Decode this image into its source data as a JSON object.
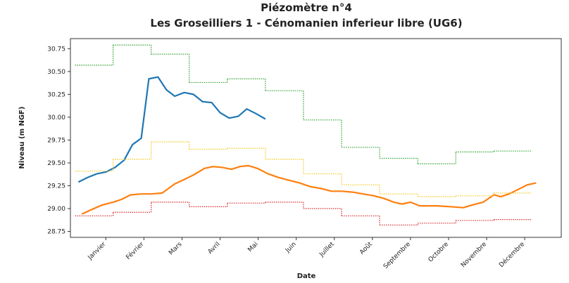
{
  "chart_data": {
    "type": "line",
    "title": "Piézomètre n°4",
    "subtitle": "Les Groseilliers 1 - Cénomanien inferieur libre (UG6)",
    "x_label": "Date",
    "y_label": "Niveau (m NGF)",
    "xlim": [
      0.07,
      12.96
    ],
    "xticks": [
      {
        "value": 1,
        "label": "Janvier"
      },
      {
        "value": 2,
        "label": "Février"
      },
      {
        "value": 3,
        "label": "Mars"
      },
      {
        "value": 4,
        "label": "Avril"
      },
      {
        "value": 5,
        "label": "Mai"
      },
      {
        "value": 6,
        "label": "Juin"
      },
      {
        "value": 7,
        "label": "Juillet"
      },
      {
        "value": 8,
        "label": "Août"
      },
      {
        "value": 9,
        "label": "Septembre"
      },
      {
        "value": 10,
        "label": "Octobre"
      },
      {
        "value": 11,
        "label": "Novembre"
      },
      {
        "value": 12,
        "label": "Décembre"
      }
    ],
    "ylim": [
      28.685,
      30.86
    ],
    "yticks": [
      28.75,
      {
        "value": 29,
        "label": "29.00"
      },
      29.25,
      {
        "value": 29.5,
        "label": "29.50"
      },
      29.75,
      {
        "value": 30,
        "label": "30.00"
      },
      30.25,
      {
        "value": 30.5,
        "label": "30.50"
      },
      30.75
    ],
    "series": [
      {
        "color": "#1f77b4",
        "style": "solid",
        "x": [
          0.28,
          0.52,
          0.76,
          1.0,
          1.24,
          1.48,
          1.7,
          1.93,
          2.13,
          2.37,
          2.59,
          2.81,
          3.06,
          3.3,
          3.54,
          3.78,
          4.0,
          4.24,
          4.48,
          4.7,
          4.94,
          5.19
        ],
        "values": [
          29.29,
          29.34,
          29.38,
          29.4,
          29.45,
          29.53,
          29.7,
          29.77,
          30.42,
          30.44,
          30.3,
          30.23,
          30.27,
          30.25,
          30.17,
          30.16,
          30.05,
          29.99,
          30.01,
          30.09,
          30.04,
          29.98
        ]
      },
      {
        "color": "#ff7f0e",
        "style": "solid",
        "x": [
          0.37,
          0.63,
          0.91,
          1.19,
          1.41,
          1.65,
          1.93,
          2.2,
          2.48,
          2.81,
          3.07,
          3.31,
          3.59,
          3.81,
          4.06,
          4.3,
          4.52,
          4.74,
          4.98,
          5.26,
          5.54,
          5.81,
          6.09,
          6.37,
          6.65,
          6.93,
          7.2,
          7.48,
          7.76,
          8.04,
          8.31,
          8.56,
          8.78,
          9.0,
          9.24,
          9.7,
          10.07,
          10.39,
          10.63,
          10.91,
          11.19,
          11.37,
          11.59,
          11.83,
          12.07,
          12.3
        ],
        "values": [
          28.94,
          28.99,
          29.04,
          29.07,
          29.1,
          29.15,
          29.16,
          29.16,
          29.17,
          29.27,
          29.32,
          29.37,
          29.44,
          29.46,
          29.45,
          29.43,
          29.46,
          29.47,
          29.44,
          29.38,
          29.34,
          29.31,
          29.28,
          29.24,
          29.22,
          29.19,
          29.19,
          29.18,
          29.16,
          29.14,
          29.11,
          29.07,
          29.05,
          29.07,
          29.03,
          29.03,
          29.02,
          29.01,
          29.04,
          29.07,
          29.15,
          29.13,
          29.16,
          29.21,
          29.26,
          29.28
        ]
      },
      {
        "color": "#2ca02c",
        "style": "step",
        "edges": [
          0.19,
          1.19,
          2.19,
          3.19,
          4.19,
          5.19,
          6.19,
          7.19,
          8.19,
          9.19,
          10.19,
          11.19,
          12.19
        ],
        "values": [
          30.57,
          30.79,
          30.69,
          30.38,
          30.42,
          30.29,
          29.97,
          29.67,
          29.55,
          29.49,
          29.62,
          29.63
        ]
      },
      {
        "color": "#f2c81c",
        "style": "step",
        "edges": [
          0.19,
          1.19,
          2.19,
          3.19,
          4.19,
          5.19,
          6.19,
          7.19,
          8.19,
          9.19,
          10.19,
          11.19,
          12.19
        ],
        "values": [
          29.41,
          29.54,
          29.73,
          29.65,
          29.66,
          29.54,
          29.38,
          29.26,
          29.16,
          29.13,
          29.14,
          29.17
        ]
      },
      {
        "color": "#d62728",
        "style": "step",
        "edges": [
          0.19,
          1.19,
          2.19,
          3.19,
          4.19,
          5.19,
          6.19,
          7.19,
          8.19,
          9.19,
          10.19,
          11.19,
          12.19
        ],
        "values": [
          28.92,
          28.96,
          29.07,
          29.02,
          29.06,
          29.07,
          29.0,
          28.92,
          28.82,
          28.84,
          28.87,
          28.88
        ]
      }
    ]
  }
}
